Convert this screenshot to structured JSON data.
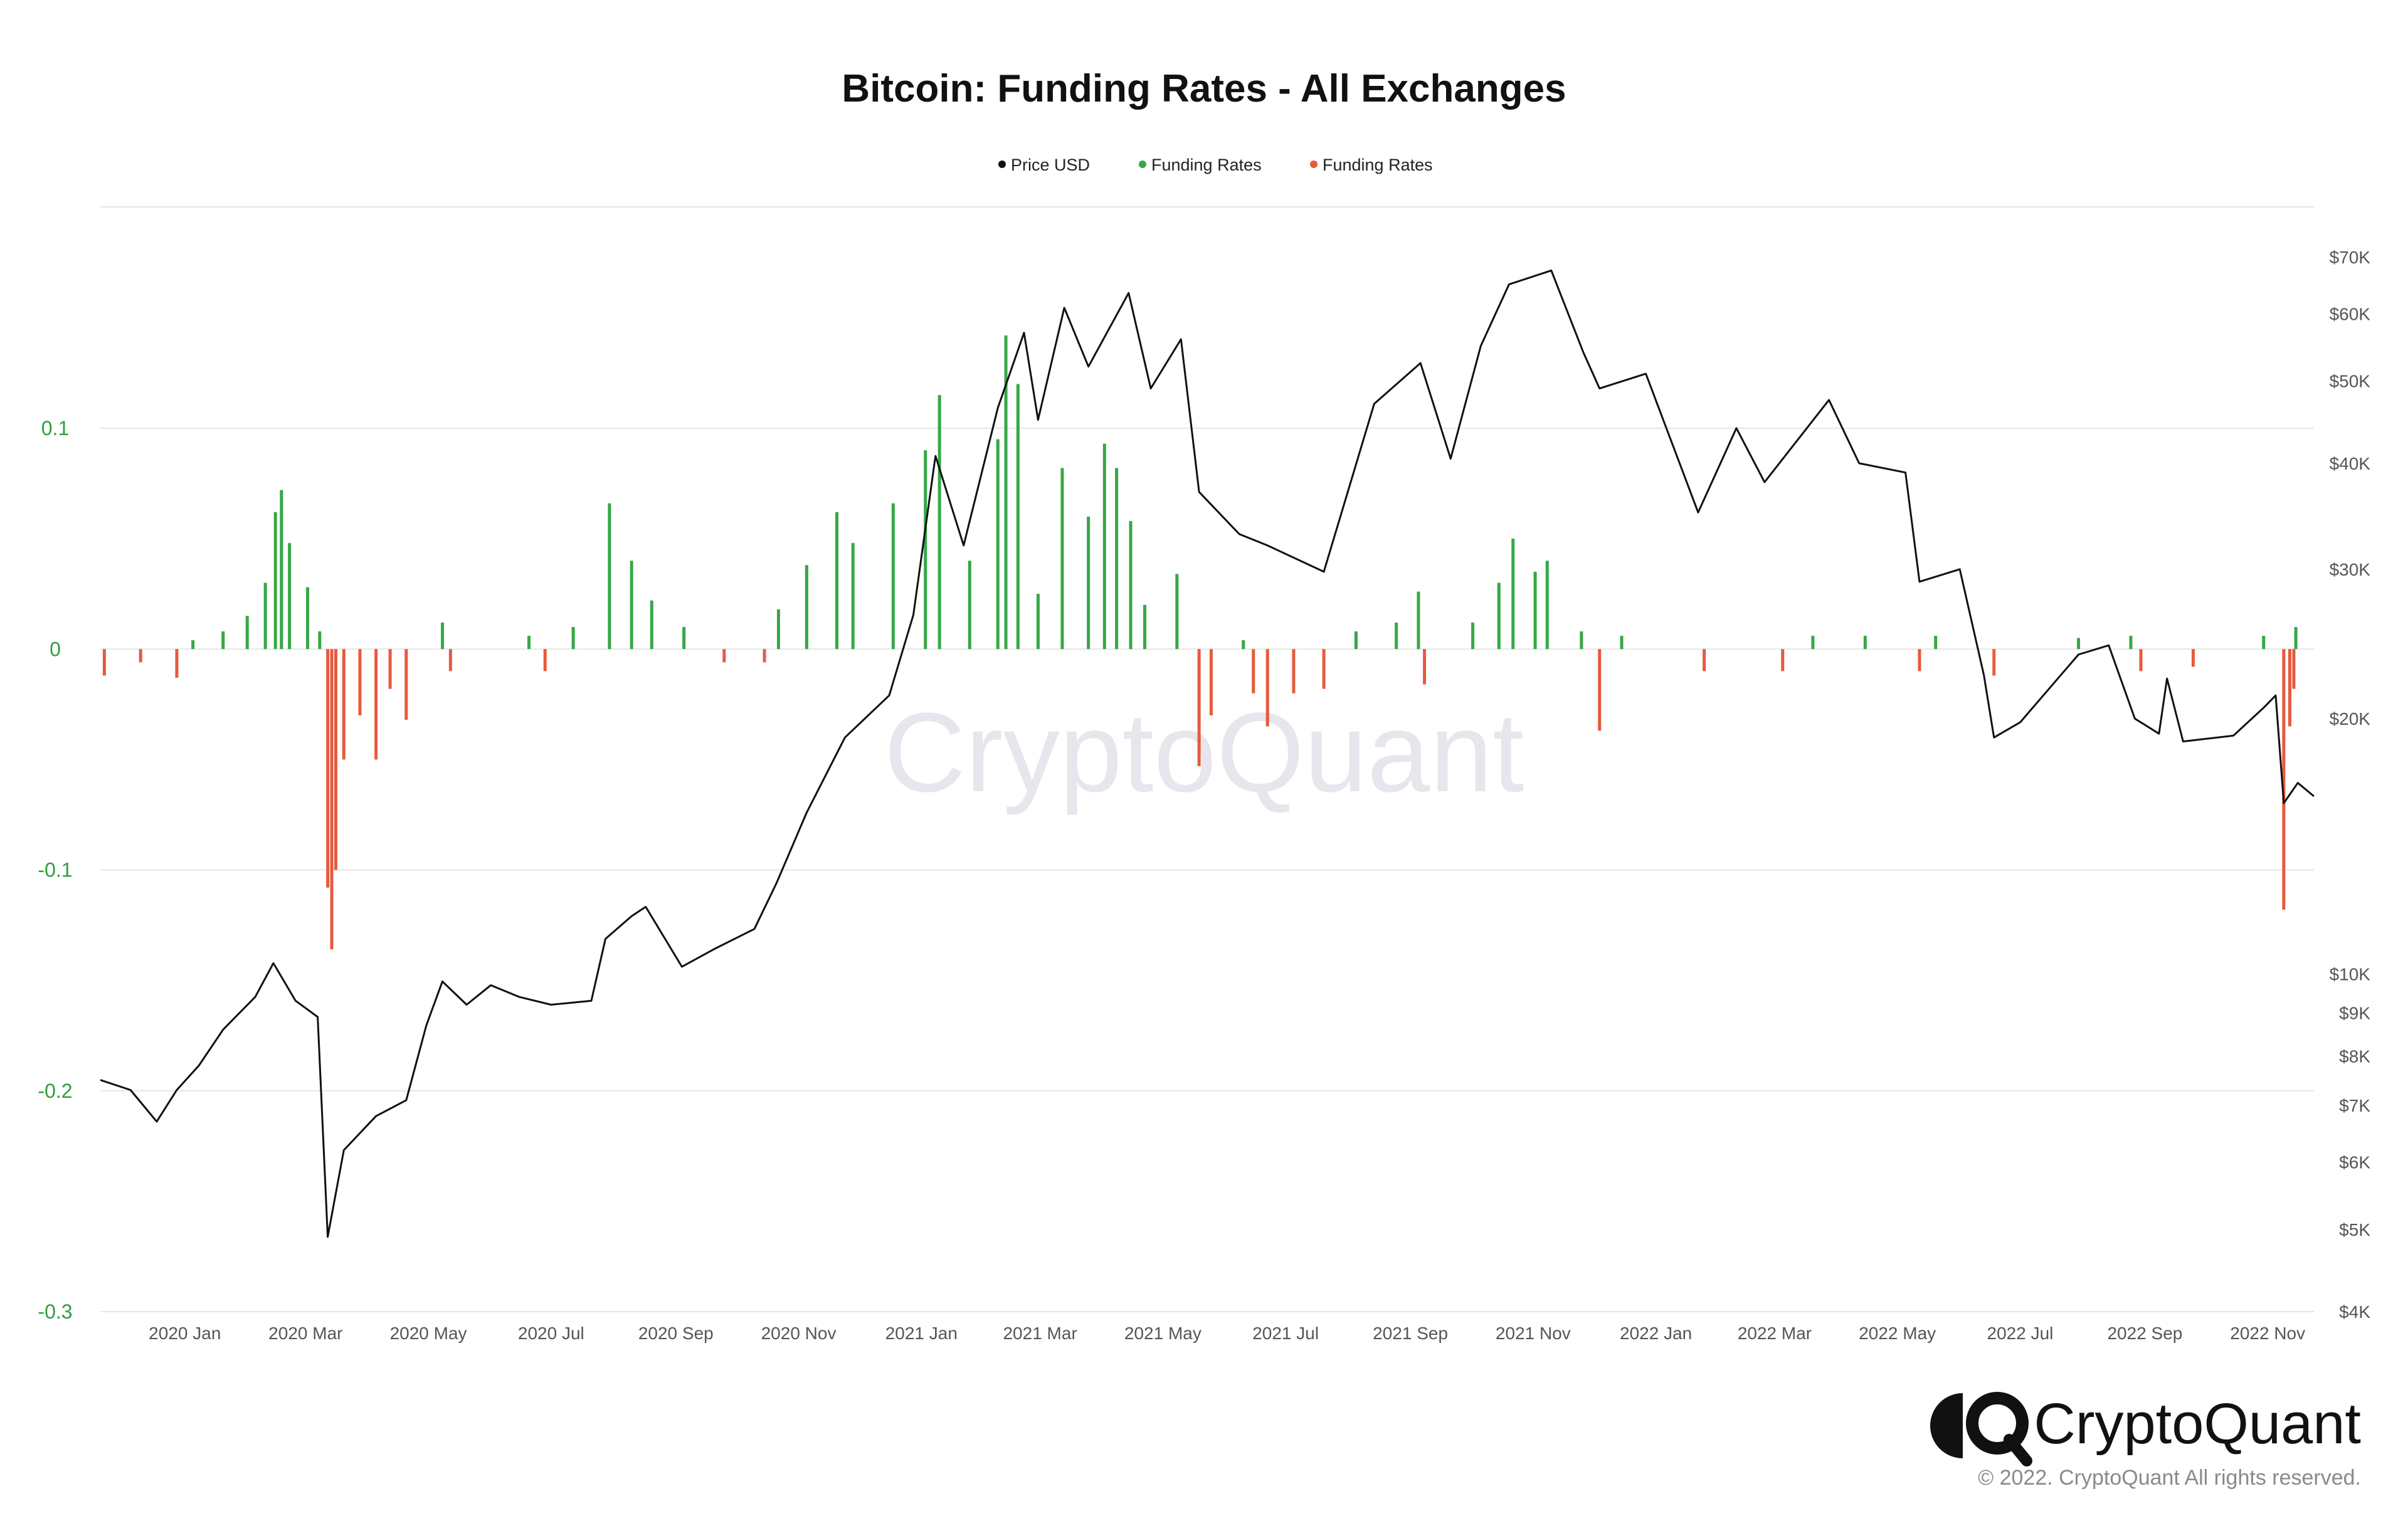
{
  "colors": {
    "price_line": "#111111",
    "funding_positive": "#35a845",
    "funding_negative": "#e65a3c",
    "grid": "#e6e6e6",
    "left_axis_text": "#2e9e3c",
    "watermark": "#e6e6ec"
  },
  "title": "Bitcoin: Funding Rates - All Exchanges",
  "legend": [
    {
      "label": "Price USD",
      "color": "#111111"
    },
    {
      "label": "Funding Rates",
      "color": "#35a845"
    },
    {
      "label": "Funding Rates",
      "color": "#e65a3c"
    }
  ],
  "watermark": "CryptoQuant",
  "brand": {
    "name": "CryptoQuant",
    "icon": "cryptoquant-logo-icon"
  },
  "copyright": "© 2022. CryptoQuant All rights reserved.",
  "chart_data": {
    "type": "bar+line",
    "title": "Bitcoin: Funding Rates - All Exchanges",
    "x_range": [
      "2019-11-20",
      "2022-11-24"
    ],
    "x_tick_labels": [
      {
        "date": "2020-01-01",
        "label": "2020 Jan"
      },
      {
        "date": "2020-03-01",
        "label": "2020 Mar"
      },
      {
        "date": "2020-05-01",
        "label": "2020 May"
      },
      {
        "date": "2020-07-01",
        "label": "2020 Jul"
      },
      {
        "date": "2020-09-01",
        "label": "2020 Sep"
      },
      {
        "date": "2020-11-01",
        "label": "2020 Nov"
      },
      {
        "date": "2021-01-01",
        "label": "2021 Jan"
      },
      {
        "date": "2021-03-01",
        "label": "2021 Mar"
      },
      {
        "date": "2021-05-01",
        "label": "2021 May"
      },
      {
        "date": "2021-07-01",
        "label": "2021 Jul"
      },
      {
        "date": "2021-09-01",
        "label": "2021 Sep"
      },
      {
        "date": "2021-11-01",
        "label": "2021 Nov"
      },
      {
        "date": "2022-01-01",
        "label": "2022 Jan"
      },
      {
        "date": "2022-03-01",
        "label": "2022 Mar"
      },
      {
        "date": "2022-05-01",
        "label": "2022 May"
      },
      {
        "date": "2022-07-01",
        "label": "2022 Jul"
      },
      {
        "date": "2022-09-01",
        "label": "2022 Sep"
      },
      {
        "date": "2022-11-01",
        "label": "2022 Nov"
      }
    ],
    "left_axis": {
      "ylim": [
        -0.3,
        0.1
      ],
      "ticks": [
        {
          "value": 0.1,
          "label": "0.1"
        },
        {
          "value": 0,
          "label": "0"
        },
        {
          "value": -0.1,
          "label": "-0.1"
        },
        {
          "value": -0.2,
          "label": "-0.2"
        },
        {
          "value": -0.3,
          "label": "-0.3"
        }
      ]
    },
    "right_axis": {
      "scale": "log",
      "ylim": [
        4000,
        70000
      ],
      "ticks": [
        {
          "value": 70000,
          "label": "$70K"
        },
        {
          "value": 60000,
          "label": "$60K"
        },
        {
          "value": 50000,
          "label": "$50K"
        },
        {
          "value": 40000,
          "label": "$40K"
        },
        {
          "value": 30000,
          "label": "$30K"
        },
        {
          "value": 20000,
          "label": "$20K"
        },
        {
          "value": 10000,
          "label": "$10K"
        },
        {
          "value": 9000,
          "label": "$9K"
        },
        {
          "value": 8000,
          "label": "$8K"
        },
        {
          "value": 7000,
          "label": "$7K"
        },
        {
          "value": 6000,
          "label": "$6K"
        },
        {
          "value": 5000,
          "label": "$5K"
        },
        {
          "value": 4000,
          "label": "$4K"
        }
      ]
    },
    "grid": true,
    "legend_position": "top-center",
    "series": [
      {
        "name": "Price USD",
        "type": "line",
        "axis": "right",
        "points": [
          [
            "2019-11-20",
            7500
          ],
          [
            "2019-12-05",
            7300
          ],
          [
            "2019-12-18",
            6700
          ],
          [
            "2019-12-28",
            7300
          ],
          [
            "2020-01-08",
            7800
          ],
          [
            "2020-01-20",
            8600
          ],
          [
            "2020-02-05",
            9400
          ],
          [
            "2020-02-14",
            10300
          ],
          [
            "2020-02-25",
            9300
          ],
          [
            "2020-03-07",
            8900
          ],
          [
            "2020-03-12",
            4900
          ],
          [
            "2020-03-20",
            6200
          ],
          [
            "2020-04-05",
            6800
          ],
          [
            "2020-04-20",
            7100
          ],
          [
            "2020-04-30",
            8700
          ],
          [
            "2020-05-08",
            9800
          ],
          [
            "2020-05-20",
            9200
          ],
          [
            "2020-06-01",
            9700
          ],
          [
            "2020-06-15",
            9400
          ],
          [
            "2020-07-01",
            9200
          ],
          [
            "2020-07-21",
            9300
          ],
          [
            "2020-07-28",
            11000
          ],
          [
            "2020-08-10",
            11700
          ],
          [
            "2020-08-17",
            12000
          ],
          [
            "2020-09-04",
            10200
          ],
          [
            "2020-09-20",
            10700
          ],
          [
            "2020-10-10",
            11300
          ],
          [
            "2020-10-21",
            12800
          ],
          [
            "2020-11-05",
            15500
          ],
          [
            "2020-11-24",
            19000
          ],
          [
            "2020-12-16",
            21300
          ],
          [
            "2020-12-28",
            26500
          ],
          [
            "2021-01-08",
            40800
          ],
          [
            "2021-01-22",
            32000
          ],
          [
            "2021-02-08",
            46500
          ],
          [
            "2021-02-21",
            57000
          ],
          [
            "2021-02-28",
            45000
          ],
          [
            "2021-03-13",
            61000
          ],
          [
            "2021-03-25",
            52000
          ],
          [
            "2021-04-14",
            63500
          ],
          [
            "2021-04-25",
            49000
          ],
          [
            "2021-05-10",
            56000
          ],
          [
            "2021-05-19",
            37000
          ],
          [
            "2021-06-08",
            33000
          ],
          [
            "2021-06-22",
            32000
          ],
          [
            "2021-07-20",
            29800
          ],
          [
            "2021-08-14",
            47000
          ],
          [
            "2021-09-06",
            52500
          ],
          [
            "2021-09-21",
            40500
          ],
          [
            "2021-10-06",
            55000
          ],
          [
            "2021-10-20",
            65000
          ],
          [
            "2021-11-10",
            67500
          ],
          [
            "2021-11-26",
            54000
          ],
          [
            "2021-12-04",
            49000
          ],
          [
            "2021-12-27",
            51000
          ],
          [
            "2022-01-22",
            35000
          ],
          [
            "2022-02-10",
            44000
          ],
          [
            "2022-02-24",
            38000
          ],
          [
            "2022-03-28",
            47500
          ],
          [
            "2022-04-12",
            40000
          ],
          [
            "2022-05-05",
            39000
          ],
          [
            "2022-05-12",
            29000
          ],
          [
            "2022-06-01",
            30000
          ],
          [
            "2022-06-13",
            22500
          ],
          [
            "2022-06-18",
            19000
          ],
          [
            "2022-07-01",
            19800
          ],
          [
            "2022-07-30",
            23800
          ],
          [
            "2022-08-14",
            24400
          ],
          [
            "2022-08-27",
            20000
          ],
          [
            "2022-09-08",
            19200
          ],
          [
            "2022-09-12",
            22300
          ],
          [
            "2022-09-20",
            18800
          ],
          [
            "2022-10-15",
            19100
          ],
          [
            "2022-10-30",
            20600
          ],
          [
            "2022-11-05",
            21300
          ],
          [
            "2022-11-09",
            15900
          ],
          [
            "2022-11-16",
            16800
          ],
          [
            "2022-11-24",
            16200
          ]
        ]
      },
      {
        "name": "Funding Rates",
        "type": "bar",
        "axis": "left",
        "color": "#35a845",
        "sign": "positive",
        "points": [
          [
            "2020-01-05",
            0.004
          ],
          [
            "2020-01-20",
            0.008
          ],
          [
            "2020-02-01",
            0.015
          ],
          [
            "2020-02-10",
            0.03
          ],
          [
            "2020-02-15",
            0.062
          ],
          [
            "2020-02-18",
            0.072
          ],
          [
            "2020-02-22",
            0.048
          ],
          [
            "2020-03-02",
            0.028
          ],
          [
            "2020-03-08",
            0.008
          ],
          [
            "2020-05-08",
            0.012
          ],
          [
            "2020-06-20",
            0.006
          ],
          [
            "2020-07-12",
            0.01
          ],
          [
            "2020-07-30",
            0.066
          ],
          [
            "2020-08-10",
            0.04
          ],
          [
            "2020-08-20",
            0.022
          ],
          [
            "2020-09-05",
            0.01
          ],
          [
            "2020-10-22",
            0.018
          ],
          [
            "2020-11-05",
            0.038
          ],
          [
            "2020-11-20",
            0.062
          ],
          [
            "2020-11-28",
            0.048
          ],
          [
            "2020-12-18",
            0.066
          ],
          [
            "2021-01-03",
            0.09
          ],
          [
            "2021-01-10",
            0.115
          ],
          [
            "2021-01-25",
            0.04
          ],
          [
            "2021-02-08",
            0.095
          ],
          [
            "2021-02-12",
            0.142
          ],
          [
            "2021-02-18",
            0.12
          ],
          [
            "2021-02-28",
            0.025
          ],
          [
            "2021-03-12",
            0.082
          ],
          [
            "2021-03-25",
            0.06
          ],
          [
            "2021-04-02",
            0.093
          ],
          [
            "2021-04-08",
            0.082
          ],
          [
            "2021-04-15",
            0.058
          ],
          [
            "2021-04-22",
            0.02
          ],
          [
            "2021-05-08",
            0.034
          ],
          [
            "2021-06-10",
            0.004
          ],
          [
            "2021-08-05",
            0.008
          ],
          [
            "2021-08-25",
            0.012
          ],
          [
            "2021-09-05",
            0.026
          ],
          [
            "2021-10-02",
            0.012
          ],
          [
            "2021-10-15",
            0.03
          ],
          [
            "2021-10-22",
            0.05
          ],
          [
            "2021-11-02",
            0.035
          ],
          [
            "2021-11-08",
            0.04
          ],
          [
            "2021-11-25",
            0.008
          ],
          [
            "2021-12-15",
            0.006
          ],
          [
            "2022-03-20",
            0.006
          ],
          [
            "2022-04-15",
            0.006
          ],
          [
            "2022-05-20",
            0.006
          ],
          [
            "2022-07-30",
            0.005
          ],
          [
            "2022-08-25",
            0.006
          ],
          [
            "2022-10-30",
            0.006
          ],
          [
            "2022-11-15",
            0.01
          ]
        ]
      },
      {
        "name": "Funding Rates",
        "type": "bar",
        "axis": "left",
        "color": "#e65a3c",
        "sign": "negative",
        "points": [
          [
            "2019-11-22",
            -0.012
          ],
          [
            "2019-12-10",
            -0.006
          ],
          [
            "2019-12-28",
            -0.013
          ],
          [
            "2020-03-12",
            -0.108
          ],
          [
            "2020-03-14",
            -0.136
          ],
          [
            "2020-03-16",
            -0.1
          ],
          [
            "2020-03-20",
            -0.05
          ],
          [
            "2020-03-28",
            -0.03
          ],
          [
            "2020-04-05",
            -0.05
          ],
          [
            "2020-04-12",
            -0.018
          ],
          [
            "2020-04-20",
            -0.032
          ],
          [
            "2020-05-12",
            -0.01
          ],
          [
            "2020-06-28",
            -0.01
          ],
          [
            "2020-09-25",
            -0.006
          ],
          [
            "2020-10-15",
            -0.006
          ],
          [
            "2021-05-19",
            -0.053
          ],
          [
            "2021-05-25",
            -0.03
          ],
          [
            "2021-06-15",
            -0.02
          ],
          [
            "2021-06-22",
            -0.035
          ],
          [
            "2021-07-05",
            -0.02
          ],
          [
            "2021-07-20",
            -0.018
          ],
          [
            "2021-09-08",
            -0.016
          ],
          [
            "2021-12-04",
            -0.037
          ],
          [
            "2022-01-25",
            -0.01
          ],
          [
            "2022-03-05",
            -0.01
          ],
          [
            "2022-05-12",
            -0.01
          ],
          [
            "2022-06-18",
            -0.012
          ],
          [
            "2022-08-30",
            -0.01
          ],
          [
            "2022-09-25",
            -0.008
          ],
          [
            "2022-11-09",
            -0.118
          ],
          [
            "2022-11-12",
            -0.035
          ],
          [
            "2022-11-14",
            -0.018
          ]
        ]
      }
    ]
  }
}
